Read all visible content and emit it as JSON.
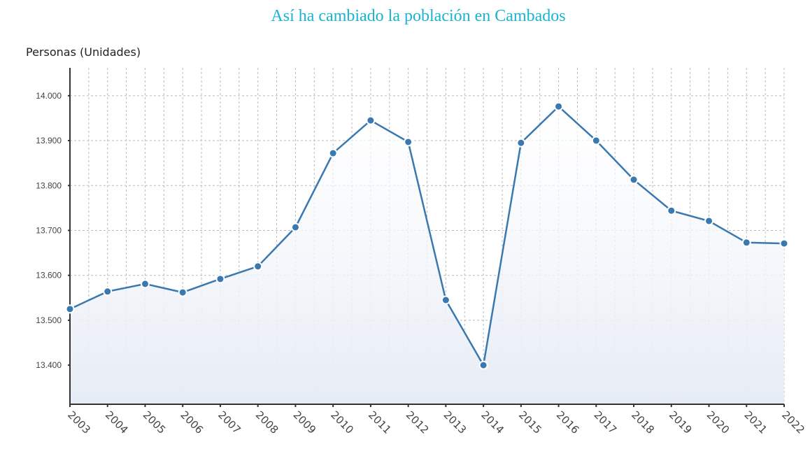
{
  "chart_data": {
    "type": "area",
    "title": "Así ha cambiado la población en Cambados",
    "ylabel": "Personas (Unidades)",
    "xlabel": "",
    "categories": [
      "2003",
      "2004",
      "2005",
      "2006",
      "2007",
      "2008",
      "2009",
      "2010",
      "2011",
      "2012",
      "2013",
      "2014",
      "2015",
      "2016",
      "2017",
      "2018",
      "2019",
      "2020",
      "2021",
      "2022"
    ],
    "values": [
      13525,
      13564,
      13581,
      13562,
      13592,
      13620,
      13707,
      13872,
      13945,
      13897,
      13545,
      13400,
      13895,
      13976,
      13900,
      13813,
      13744,
      13721,
      13673,
      13671
    ],
    "yticks": [
      13400,
      13500,
      13600,
      13700,
      13800,
      13900,
      14000
    ],
    "ytick_labels": [
      "13.400",
      "13.500",
      "13.600",
      "13.700",
      "13.800",
      "13.900",
      "14.000"
    ],
    "ylim": [
      13313,
      14062
    ],
    "grid": true,
    "line_color": "#3a78b0",
    "title_color": "#1ab3d1"
  }
}
